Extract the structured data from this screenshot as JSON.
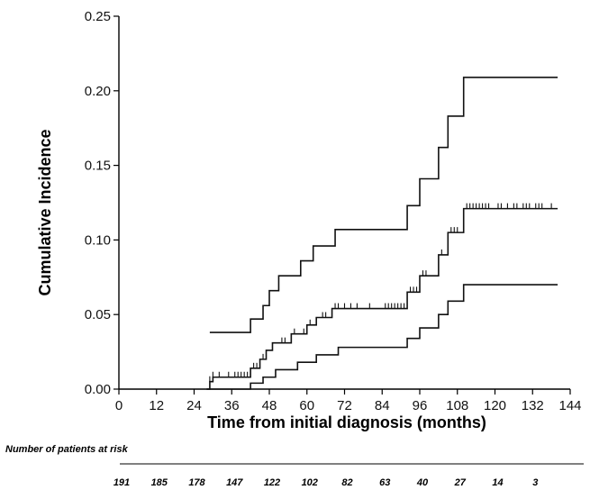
{
  "chart_data": {
    "type": "line",
    "title": "",
    "xlabel": "Time from initial diagnosis (months)",
    "ylabel": "Cumulative Incidence",
    "xlim": [
      0,
      144
    ],
    "ylim": [
      0,
      0.25
    ],
    "xticks": [
      0,
      12,
      24,
      36,
      48,
      60,
      72,
      84,
      96,
      108,
      120,
      132,
      144
    ],
    "xtick_labels": [
      "0",
      "12",
      "24",
      "36",
      "48",
      "60",
      "72",
      "84",
      "96",
      "108",
      "120",
      "132",
      "144"
    ],
    "yticks": [
      0.0,
      0.05,
      0.1,
      0.15,
      0.2,
      0.25
    ],
    "ytick_labels": [
      "0.00",
      "0.05",
      "0.10",
      "0.15",
      "0.20",
      "0.25"
    ],
    "grid": false,
    "legend": "none",
    "series": [
      {
        "style": "step",
        "color": "#111111",
        "points": [
          [
            29,
            0.038
          ],
          [
            42,
            0.038
          ],
          [
            42,
            0.047
          ],
          [
            46,
            0.047
          ],
          [
            46,
            0.056
          ],
          [
            48,
            0.056
          ],
          [
            48,
            0.066
          ],
          [
            51,
            0.066
          ],
          [
            51,
            0.076
          ],
          [
            58,
            0.076
          ],
          [
            58,
            0.086
          ],
          [
            62,
            0.086
          ],
          [
            62,
            0.096
          ],
          [
            69,
            0.096
          ],
          [
            69,
            0.107
          ],
          [
            92,
            0.107
          ],
          [
            92,
            0.123
          ],
          [
            96,
            0.123
          ],
          [
            96,
            0.141
          ],
          [
            102,
            0.141
          ],
          [
            102,
            0.162
          ],
          [
            105,
            0.162
          ],
          [
            105,
            0.183
          ],
          [
            110,
            0.183
          ],
          [
            110,
            0.209
          ],
          [
            140,
            0.209
          ]
        ]
      },
      {
        "style": "step",
        "color": "#111111",
        "points": [
          [
            28,
            0.0
          ],
          [
            29,
            0.0
          ],
          [
            29,
            0.005
          ],
          [
            30,
            0.005
          ],
          [
            30,
            0.008
          ],
          [
            42,
            0.008
          ],
          [
            42,
            0.014
          ],
          [
            45,
            0.014
          ],
          [
            45,
            0.02
          ],
          [
            47,
            0.02
          ],
          [
            47,
            0.026
          ],
          [
            49,
            0.026
          ],
          [
            49,
            0.031
          ],
          [
            55,
            0.031
          ],
          [
            55,
            0.037
          ],
          [
            60,
            0.037
          ],
          [
            60,
            0.043
          ],
          [
            63,
            0.043
          ],
          [
            63,
            0.048
          ],
          [
            68,
            0.048
          ],
          [
            68,
            0.054
          ],
          [
            92,
            0.054
          ],
          [
            92,
            0.065
          ],
          [
            96,
            0.065
          ],
          [
            96,
            0.076
          ],
          [
            102,
            0.076
          ],
          [
            102,
            0.09
          ],
          [
            105,
            0.09
          ],
          [
            105,
            0.105
          ],
          [
            110,
            0.105
          ],
          [
            110,
            0.121
          ],
          [
            140,
            0.121
          ]
        ],
        "censor_marks": [
          [
            29,
            0.005
          ],
          [
            30,
            0.008
          ],
          [
            32,
            0.008
          ],
          [
            35,
            0.008
          ],
          [
            37,
            0.008
          ],
          [
            38,
            0.008
          ],
          [
            39,
            0.008
          ],
          [
            40,
            0.008
          ],
          [
            41,
            0.008
          ],
          [
            43,
            0.014
          ],
          [
            44,
            0.014
          ],
          [
            46,
            0.02
          ],
          [
            52,
            0.031
          ],
          [
            53,
            0.031
          ],
          [
            56,
            0.037
          ],
          [
            59,
            0.037
          ],
          [
            61,
            0.043
          ],
          [
            65,
            0.048
          ],
          [
            66,
            0.048
          ],
          [
            69,
            0.054
          ],
          [
            70,
            0.054
          ],
          [
            72,
            0.054
          ],
          [
            74,
            0.054
          ],
          [
            76,
            0.054
          ],
          [
            80,
            0.054
          ],
          [
            85,
            0.054
          ],
          [
            86,
            0.054
          ],
          [
            87,
            0.054
          ],
          [
            88,
            0.054
          ],
          [
            89,
            0.054
          ],
          [
            90,
            0.054
          ],
          [
            91,
            0.054
          ],
          [
            93,
            0.065
          ],
          [
            94,
            0.065
          ],
          [
            95,
            0.065
          ],
          [
            97,
            0.076
          ],
          [
            98,
            0.076
          ],
          [
            103,
            0.09
          ],
          [
            106,
            0.105
          ],
          [
            107,
            0.105
          ],
          [
            108,
            0.105
          ],
          [
            111,
            0.121
          ],
          [
            112,
            0.121
          ],
          [
            113,
            0.121
          ],
          [
            114,
            0.121
          ],
          [
            115,
            0.121
          ],
          [
            116,
            0.121
          ],
          [
            117,
            0.121
          ],
          [
            118,
            0.121
          ],
          [
            121,
            0.121
          ],
          [
            122,
            0.121
          ],
          [
            124,
            0.121
          ],
          [
            126,
            0.121
          ],
          [
            127,
            0.121
          ],
          [
            129,
            0.121
          ],
          [
            130,
            0.121
          ],
          [
            131,
            0.121
          ],
          [
            133,
            0.121
          ],
          [
            134,
            0.121
          ],
          [
            135,
            0.121
          ],
          [
            138,
            0.121
          ]
        ]
      },
      {
        "style": "step",
        "color": "#111111",
        "points": [
          [
            28,
            0.0
          ],
          [
            42,
            0.0
          ],
          [
            42,
            0.004
          ],
          [
            46,
            0.004
          ],
          [
            46,
            0.008
          ],
          [
            50,
            0.008
          ],
          [
            50,
            0.013
          ],
          [
            57,
            0.013
          ],
          [
            57,
            0.018
          ],
          [
            63,
            0.018
          ],
          [
            63,
            0.023
          ],
          [
            70,
            0.023
          ],
          [
            70,
            0.028
          ],
          [
            92,
            0.028
          ],
          [
            92,
            0.034
          ],
          [
            96,
            0.034
          ],
          [
            96,
            0.041
          ],
          [
            102,
            0.041
          ],
          [
            102,
            0.05
          ],
          [
            105,
            0.05
          ],
          [
            105,
            0.059
          ],
          [
            110,
            0.059
          ],
          [
            110,
            0.07
          ],
          [
            140,
            0.07
          ]
        ]
      }
    ],
    "risk_table": {
      "title": "Number of patients at risk",
      "values": [
        "191",
        "185",
        "178",
        "147",
        "122",
        "102",
        "82",
        "63",
        "40",
        "27",
        "14",
        "3"
      ],
      "times": [
        0,
        12,
        24,
        36,
        48,
        60,
        72,
        84,
        96,
        108,
        120,
        132
      ]
    }
  }
}
